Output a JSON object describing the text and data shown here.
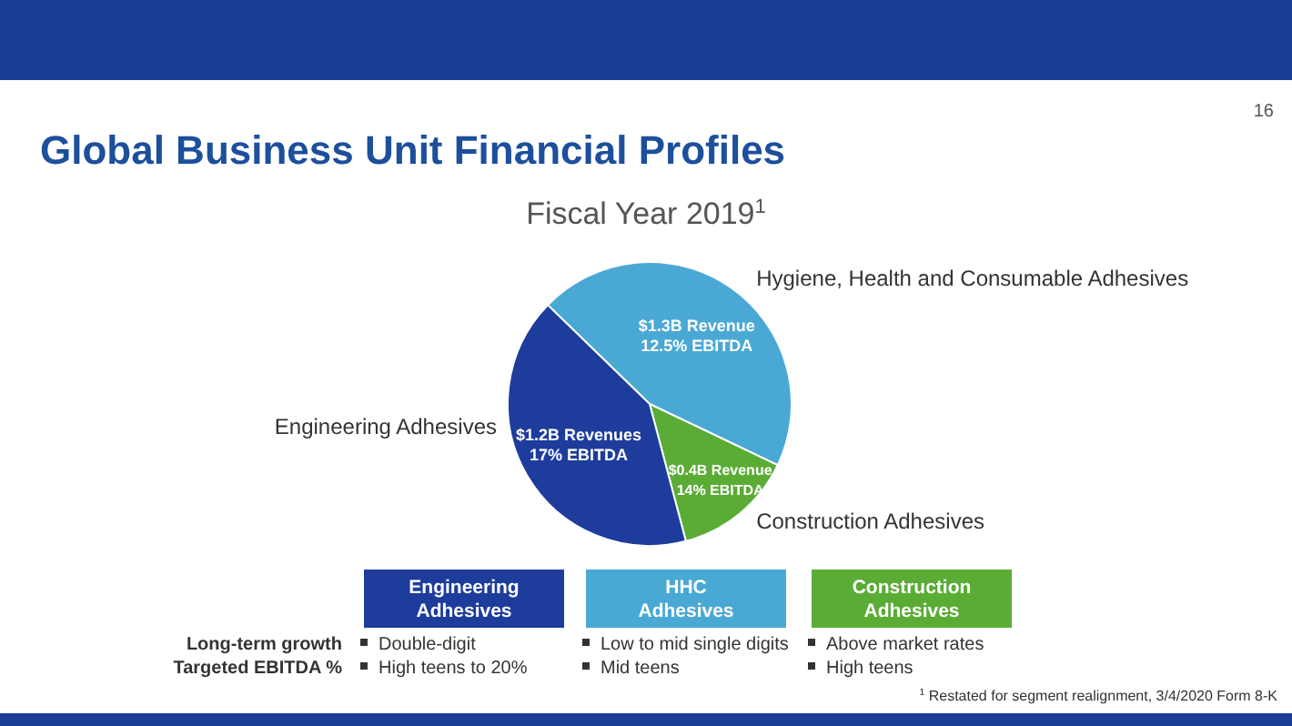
{
  "chart_data": {
    "type": "pie",
    "title": "Global Business Unit Financial Profiles",
    "subtitle": "Fiscal Year 2019$^{1}$",
    "categories": [
      "Hygiene, Health and Consumable Adhesives",
      "Construction Adhesives",
      "Engineering Adhesives"
    ],
    "values": [
      1.3,
      0.4,
      1.2
    ],
    "colors": [
      "#4aa8d4",
      "#5aac35",
      "#1d3c9c"
    ],
    "value_labels": [
      "$1.3B Revenue",
      "$0.4B Revenue",
      "$1.2B Revenues"
    ],
    "legend": false,
    "annotations": [
      "16",
      "$^{1}$ Restated for segment realignment, 3/4/2020 Form 8-K",
      "Engineering\nAdhesives",
      "HHC\nAdhesives",
      "Construction\nAdhesives",
      "Long-term growth",
      "Targeted EBITDA %",
      "Double-digit",
      "High teens to 20%",
      "Low to mid single digits",
      "Mid teens",
      "Above market rates",
      "High teens",
      "12.5% EBITDA",
      "14% EBITDA",
      "17% EBITDA"
    ]
  }
}
